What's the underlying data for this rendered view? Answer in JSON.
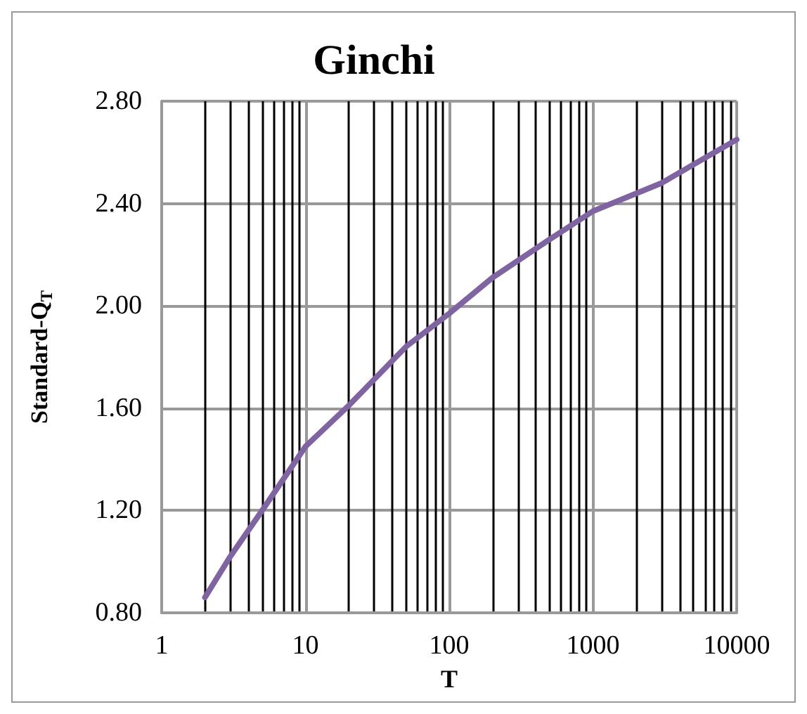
{
  "chart_data": {
    "type": "line",
    "title": "Ginchi",
    "xlabel": "T",
    "ylabel": "Standard-Q$_{T}$",
    "series": [
      {
        "color": "#8064a2",
        "x": [
          2,
          3,
          5,
          10,
          20,
          50,
          100,
          200,
          500,
          1000,
          3000,
          10000
        ],
        "values": [
          0.86,
          1.02,
          1.2,
          1.45,
          1.61,
          1.84,
          1.97,
          2.11,
          2.26,
          2.37,
          2.48,
          2.65
        ]
      }
    ],
    "xlim": [
      1,
      10000
    ],
    "xticks": [
      1,
      10,
      100,
      1000,
      10000
    ],
    "ylim": [
      0.8,
      2.8
    ],
    "yticks": [
      {
        "value": 0.8,
        "label": "0.80"
      },
      {
        "value": 1.2,
        "label": "1.20"
      },
      {
        "value": 1.6,
        "label": "1.60"
      },
      {
        "value": 2.0,
        "label": "2.00"
      },
      {
        "value": 2.4,
        "label": "2.40"
      },
      {
        "value": 2.8,
        "label": "2.80"
      }
    ],
    "log": "x",
    "grid": true,
    "marker": "none",
    "line_style": "solid"
  }
}
